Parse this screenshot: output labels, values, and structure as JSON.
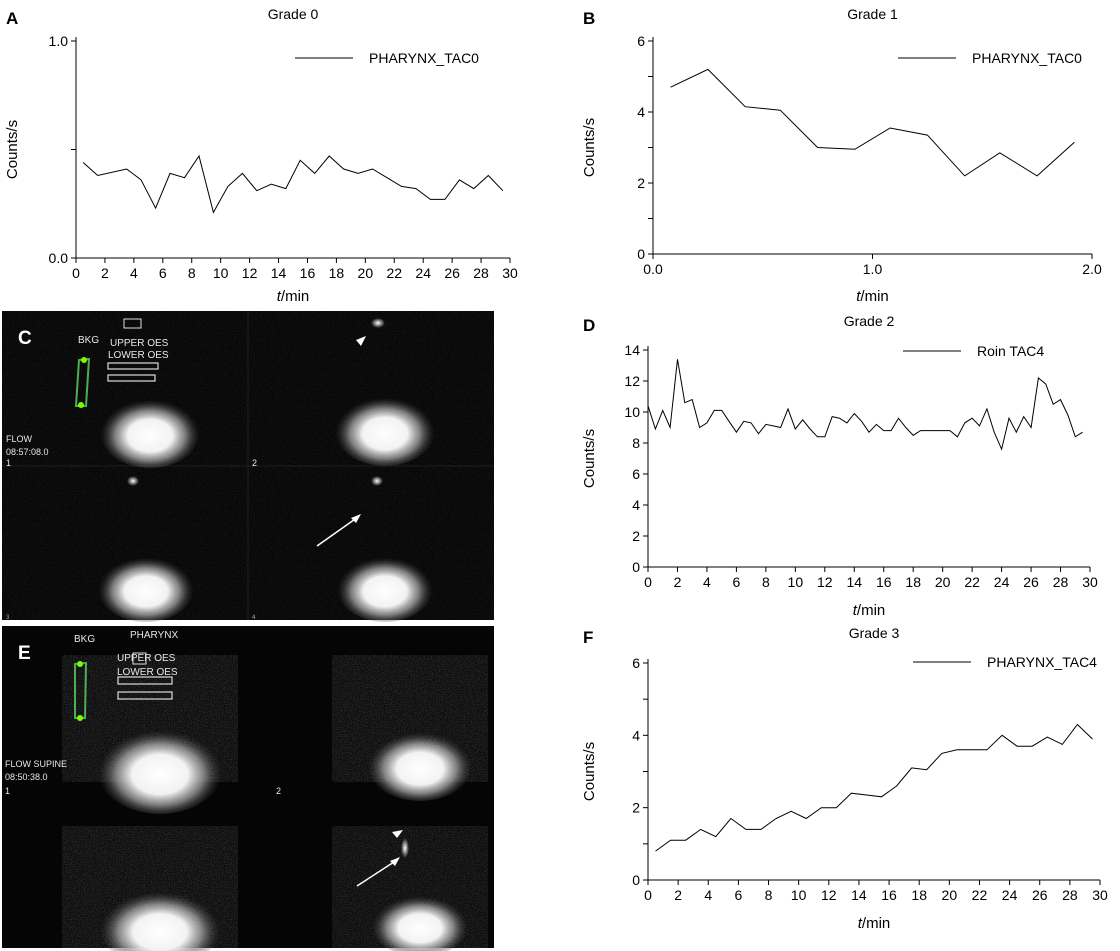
{
  "panels": {
    "A": {
      "letter": "A"
    },
    "B": {
      "letter": "B"
    },
    "C": {
      "letter": "C",
      "labels": {
        "bkg": "BKG",
        "upper": "UPPER OES",
        "lower": "LOWER OES",
        "mode": "FLOW",
        "time": "08:57:08.0",
        "f1": "1",
        "f2": "2",
        "f3": "3",
        "f4": "4"
      }
    },
    "D": {
      "letter": "D"
    },
    "E": {
      "letter": "E",
      "labels": {
        "bkg": "BKG",
        "region": "PHARYNX",
        "upper": "UPPER OES",
        "lower": "LOWER OES",
        "mode": "FLOW SUPINE",
        "time": "08:50:38.0",
        "f1": "1",
        "f2": "2"
      }
    },
    "F": {
      "letter": "F"
    }
  },
  "chart_data": [
    {
      "panel": "A",
      "type": "line",
      "title": "Grade 0",
      "xlabel": "t/min",
      "ylabel": "Counts/s",
      "xlim": [
        0,
        30
      ],
      "ylim": [
        0,
        1.0
      ],
      "xticks": [
        0,
        2,
        4,
        6,
        8,
        10,
        12,
        14,
        16,
        18,
        20,
        22,
        24,
        26,
        28,
        30
      ],
      "xtick_labels": [
        "0",
        "2",
        "4",
        "6",
        "8",
        "10",
        "12",
        "14",
        "16",
        "18",
        "20",
        "22",
        "24",
        "26",
        "28",
        "30"
      ],
      "yticks": [
        0,
        0.5,
        1.0
      ],
      "ytick_labels": [
        "0.0",
        "",
        "1.0"
      ],
      "legend": "top-right",
      "series": [
        {
          "name": "PHARYNX_TAC0",
          "x": [
            0.5,
            1.5,
            3.5,
            4.5,
            5.5,
            6.5,
            7.5,
            8.5,
            9.5,
            10.5,
            11.5,
            12.5,
            13.5,
            14.5,
            15.5,
            16.5,
            17.5,
            18.5,
            19.5,
            20.5,
            21.5,
            22.5,
            23.5,
            24.5,
            25.5,
            26.5,
            27.5,
            28.5,
            29.5
          ],
          "y": [
            0.44,
            0.38,
            0.41,
            0.36,
            0.23,
            0.39,
            0.37,
            0.47,
            0.21,
            0.33,
            0.39,
            0.31,
            0.34,
            0.32,
            0.45,
            0.39,
            0.47,
            0.41,
            0.39,
            0.41,
            0.37,
            0.33,
            0.32,
            0.27,
            0.27,
            0.36,
            0.32,
            0.38,
            0.31
          ]
        }
      ]
    },
    {
      "panel": "B",
      "type": "line",
      "title": "Grade 1",
      "xlabel": "t/min",
      "ylabel": "Counts/s",
      "xlim": [
        0,
        2.0
      ],
      "ylim": [
        0,
        6
      ],
      "xticks": [
        0,
        1.0,
        2.0
      ],
      "xtick_labels": [
        "0.0",
        "1.0",
        "2.0"
      ],
      "yticks": [
        0,
        1,
        2,
        3,
        4,
        5,
        6
      ],
      "ytick_labels": [
        "0",
        "",
        "2",
        "",
        "4",
        "",
        "6"
      ],
      "legend": "top-right",
      "series": [
        {
          "name": "PHARYNX_TAC0",
          "x": [
            0.08,
            0.25,
            0.42,
            0.58,
            0.75,
            0.92,
            1.08,
            1.25,
            1.42,
            1.58,
            1.75,
            1.92
          ],
          "y": [
            4.7,
            5.2,
            4.15,
            4.05,
            3.0,
            2.95,
            3.55,
            3.35,
            2.2,
            2.85,
            2.2,
            3.15
          ]
        }
      ]
    },
    {
      "panel": "D",
      "type": "line",
      "title": "Grade 2",
      "xlabel": "t/min",
      "ylabel": "Counts/s",
      "xlim": [
        0,
        30
      ],
      "ylim": [
        0,
        14
      ],
      "xticks": [
        0,
        2,
        4,
        6,
        8,
        10,
        12,
        14,
        16,
        18,
        20,
        22,
        24,
        26,
        28,
        30
      ],
      "xtick_labels": [
        "0",
        "2",
        "4",
        "6",
        "8",
        "10",
        "12",
        "14",
        "16",
        "18",
        "20",
        "22",
        "24",
        "26",
        "28",
        "30"
      ],
      "yticks": [
        0,
        2,
        4,
        6,
        8,
        10,
        12,
        14
      ],
      "ytick_labels": [
        "0",
        "2",
        "4",
        "6",
        "8",
        "10",
        "12",
        "14"
      ],
      "legend": "top-right",
      "series": [
        {
          "name": "Roin TAC4",
          "x": [
            0,
            0.5,
            1,
            1.5,
            2,
            2.5,
            3,
            3.5,
            4,
            4.5,
            5,
            5.5,
            6,
            6.5,
            7,
            7.5,
            8,
            8.5,
            9,
            9.5,
            10,
            10.5,
            11,
            11.5,
            12,
            12.5,
            13,
            13.5,
            14,
            14.5,
            15,
            15.5,
            16,
            16.5,
            17,
            17.5,
            18,
            18.5,
            19,
            19.5,
            20,
            20.5,
            21,
            21.5,
            22,
            22.5,
            23,
            23.5,
            24,
            24.5,
            25,
            25.5,
            26,
            26.5,
            27,
            27.5,
            28,
            28.5,
            29,
            29.5
          ],
          "y": [
            10.4,
            8.9,
            10.1,
            9.0,
            13.4,
            10.6,
            10.8,
            9.0,
            9.3,
            10.1,
            10.1,
            9.4,
            8.7,
            9.4,
            9.3,
            8.6,
            9.2,
            9.1,
            9.0,
            10.2,
            8.9,
            9.5,
            8.9,
            8.4,
            8.4,
            9.7,
            9.6,
            9.3,
            9.9,
            9.4,
            8.7,
            9.2,
            8.8,
            8.8,
            9.6,
            9.0,
            8.5,
            8.8,
            8.8,
            8.8,
            8.8,
            8.8,
            8.4,
            9.3,
            9.6,
            9.1,
            10.2,
            8.7,
            7.6,
            9.6,
            8.7,
            9.7,
            9.0,
            12.2,
            11.8,
            10.5,
            10.8,
            9.8,
            8.4,
            8.7
          ]
        }
      ]
    },
    {
      "panel": "F",
      "type": "line",
      "title": "Grade 3",
      "xlabel": "t/min",
      "ylabel": "Counts/s",
      "xlim": [
        0,
        30
      ],
      "ylim": [
        0,
        6
      ],
      "xticks": [
        0,
        2,
        4,
        6,
        8,
        10,
        12,
        14,
        16,
        18,
        20,
        22,
        24,
        26,
        28,
        30
      ],
      "xtick_labels": [
        "0",
        "2",
        "4",
        "6",
        "8",
        "10",
        "12",
        "14",
        "16",
        "18",
        "20",
        "22",
        "24",
        "26",
        "28",
        "30"
      ],
      "yticks": [
        0,
        1,
        2,
        3,
        4,
        5,
        6
      ],
      "ytick_labels": [
        "0",
        "",
        "2",
        "",
        "4",
        "",
        "6"
      ],
      "legend": "top-right",
      "series": [
        {
          "name": "PHARYNX_TAC4",
          "x": [
            0.5,
            1.5,
            2.5,
            3.5,
            4.5,
            5.5,
            6.5,
            7.5,
            8.5,
            9.5,
            10.5,
            11.5,
            12.5,
            13.5,
            14.5,
            15.5,
            16.5,
            17.5,
            18.5,
            19.5,
            20.5,
            21.5,
            22.5,
            23.5,
            24.5,
            25.5,
            26.5,
            27.5,
            28.5,
            29.5
          ],
          "y": [
            0.8,
            1.1,
            1.1,
            1.4,
            1.2,
            1.7,
            1.4,
            1.4,
            1.7,
            1.9,
            1.7,
            2.0,
            2.0,
            2.4,
            2.35,
            2.3,
            2.6,
            3.1,
            3.05,
            3.5,
            3.6,
            3.6,
            3.6,
            4.0,
            3.7,
            3.7,
            3.95,
            3.75,
            4.3,
            3.9
          ]
        }
      ]
    }
  ]
}
